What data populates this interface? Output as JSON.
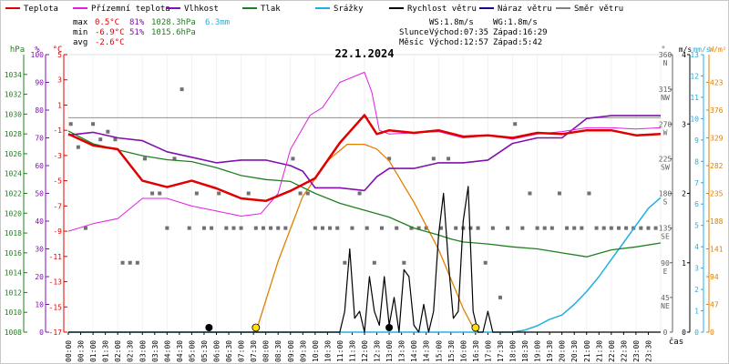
{
  "chart_data": {
    "type": "line",
    "title": "22.1.2024",
    "legend": [
      {
        "key": "temp",
        "label": "Teplota",
        "color": "#e00000"
      },
      {
        "key": "feels",
        "label": "Přízemní teplota",
        "color": "#e020e0"
      },
      {
        "key": "hum",
        "label": "Vlhkost",
        "color": "#8010b0"
      },
      {
        "key": "press",
        "label": "Tlak",
        "color": "#208020"
      },
      {
        "key": "rain",
        "label": "Srážky",
        "color": "#20b0e0"
      },
      {
        "key": "wind",
        "label": "Rychlost větru",
        "color": "#000000"
      },
      {
        "key": "gust",
        "label": "Náraz větru",
        "color": "#200090"
      },
      {
        "key": "dir",
        "label": "Směr větru",
        "color": "#808080"
      }
    ],
    "stats": {
      "max_label": "max",
      "max_temp": "0.5°C",
      "max_hum": "81%",
      "max_press": "1028.3hPa",
      "rain_total": "6.3mm",
      "min_label": "min",
      "min_temp": "-6.9°C",
      "min_hum": "51%",
      "min_press": "1015.6hPa",
      "avg_label": "avg",
      "avg_temp": "-2.6°C"
    },
    "wind_info": {
      "ws": "WS:1.8m/s",
      "wg": "WG:1.8m/s"
    },
    "sun": {
      "label": "Slunce",
      "rise": "Východ:07:35",
      "set": "Západ:16:29"
    },
    "moon": {
      "label": "Měsíc",
      "rise": "Východ:12:57",
      "set": "Západ:5:42"
    },
    "axes": {
      "hpa": {
        "unit": "hPa",
        "min": 1008,
        "max": 1036,
        "ticks": [
          "1034",
          "1032",
          "1030",
          "1028",
          "1026",
          "1024",
          "1022",
          "1020",
          "1018",
          "1016",
          "1014",
          "1012",
          "1010",
          "1008"
        ]
      },
      "pct": {
        "unit": "%",
        "min": 0,
        "max": 100,
        "ticks": [
          "100",
          "90",
          "80",
          "70",
          "60",
          "50",
          "40",
          "30",
          "20",
          "10",
          "0"
        ]
      },
      "temp": {
        "unit": "°C",
        "min": -17,
        "max": 5,
        "ticks": [
          "5",
          "3",
          "1",
          "-1",
          "-3",
          "-5",
          "-7",
          "-9",
          "-11",
          "-13",
          "-15",
          "-17"
        ]
      },
      "deg": {
        "unit": "°",
        "min": 0,
        "max": 360,
        "ticks": [
          [
            "360",
            "N"
          ],
          [
            "315",
            "NW"
          ],
          [
            "270",
            "W"
          ],
          [
            "225",
            "SW"
          ],
          [
            "180",
            "S"
          ],
          [
            "135",
            "SE"
          ],
          [
            "90",
            "E"
          ],
          [
            "45",
            "NE"
          ],
          [
            "0",
            ""
          ]
        ]
      },
      "ms": {
        "unit": "m/s",
        "min": 0,
        "max": 4,
        "ticks": [
          "4",
          "3",
          "2",
          "1",
          "0"
        ]
      },
      "mms": {
        "unit": "mm/s",
        "min": 0,
        "max": 13,
        "ticks": [
          "13",
          "12",
          "11",
          "10",
          "9",
          "8",
          "7",
          "6",
          "5",
          "4",
          "3",
          "2",
          "1",
          "0"
        ]
      },
      "wm2": {
        "unit": "W/m²",
        "min": 0,
        "max": 470,
        "ticks": [
          "423",
          "376",
          "329",
          "282",
          "235",
          "188",
          "141",
          "94",
          "47",
          "0"
        ]
      },
      "x_label": "čas",
      "x_ticks": [
        "00:00",
        "00:30",
        "01:00",
        "01:30",
        "02:00",
        "02:30",
        "03:00",
        "03:30",
        "04:00",
        "04:30",
        "05:00",
        "05:30",
        "06:00",
        "06:30",
        "07:00",
        "07:30",
        "08:00",
        "08:30",
        "09:00",
        "09:30",
        "10:00",
        "10:30",
        "11:00",
        "11:30",
        "12:00",
        "12:30",
        "13:00",
        "13:30",
        "14:00",
        "14:30",
        "15:00",
        "15:30",
        "16:00",
        "16:30",
        "17:00",
        "17:30",
        "18:00",
        "18:30",
        "19:00",
        "19:30",
        "20:00",
        "20:30",
        "21:00",
        "21:30",
        "22:00",
        "22:30",
        "23:00",
        "23:30"
      ]
    },
    "series": {
      "temp": {
        "x": [
          0,
          1,
          2,
          3,
          4,
          5,
          6,
          7,
          8,
          9,
          10,
          11,
          12,
          12.5,
          13,
          14,
          15,
          16,
          17,
          18,
          19,
          20,
          21,
          22,
          23,
          24
        ],
        "y": [
          -1.3,
          -2.2,
          -2.5,
          -5.0,
          -5.5,
          -5.0,
          -5.6,
          -6.4,
          -6.6,
          -5.8,
          -4.8,
          -2.0,
          0.2,
          -1.3,
          -1.0,
          -1.2,
          -1.0,
          -1.5,
          -1.4,
          -1.6,
          -1.2,
          -1.3,
          -1.0,
          -1.0,
          -1.4,
          -1.3
        ]
      },
      "feels": {
        "x": [
          0,
          1,
          2,
          3,
          4,
          5,
          6,
          7,
          7.8,
          8.5,
          9,
          9.8,
          10.3,
          11,
          12,
          12.3,
          12.6,
          13,
          14,
          15,
          16,
          17,
          18,
          19,
          20,
          21,
          22,
          23,
          24
        ],
        "y": [
          -9.0,
          -8.4,
          -8.0,
          -6.4,
          -6.4,
          -7.0,
          -7.4,
          -7.8,
          -7.6,
          -6.0,
          -2.5,
          0.2,
          0.8,
          2.8,
          3.6,
          2.0,
          -1.0,
          -1.3,
          -1.2,
          -1.1,
          -1.6,
          -1.4,
          -1.7,
          -1.3,
          -1.1,
          -0.8,
          -0.8,
          -0.9,
          -0.8
        ]
      },
      "hum": {
        "x": [
          0,
          1,
          2,
          3,
          4,
          5,
          6,
          7,
          8,
          9,
          9.5,
          10,
          11,
          12,
          12.5,
          13,
          14,
          15,
          16,
          17,
          18,
          19,
          20,
          21,
          22,
          23,
          24
        ],
        "y": [
          71,
          72,
          70,
          69,
          65,
          63,
          61,
          62,
          62,
          60,
          58,
          52,
          52,
          51,
          56,
          59,
          59,
          61,
          61,
          62,
          68,
          70,
          70,
          77,
          78,
          78,
          78
        ]
      },
      "press": {
        "x": [
          0,
          1,
          2,
          3,
          4,
          5,
          6,
          7,
          8,
          9,
          10,
          11,
          12,
          13,
          14,
          15,
          15.5,
          16,
          17,
          18,
          19,
          20,
          21,
          22,
          23,
          24
        ],
        "y": [
          1028.3,
          1027.0,
          1026.4,
          1025.8,
          1025.4,
          1025.2,
          1024.6,
          1023.8,
          1023.4,
          1023.2,
          1022.0,
          1021.0,
          1020.3,
          1019.6,
          1018.5,
          1017.8,
          1017.4,
          1017.1,
          1016.9,
          1016.6,
          1016.4,
          1016.0,
          1015.6,
          1016.3,
          1016.6,
          1017.0
        ]
      },
      "rain": {
        "x": [
          0,
          18,
          18.5,
          19,
          19.5,
          20,
          20.5,
          21,
          21.5,
          22,
          22.5,
          23,
          23.5,
          24
        ],
        "y": [
          0,
          0,
          0.1,
          0.3,
          0.6,
          0.8,
          1.3,
          1.9,
          2.6,
          3.4,
          4.2,
          5.0,
          5.8,
          6.3
        ]
      },
      "solar": {
        "x": [
          7.6,
          8.5,
          9.5,
          10.5,
          11.3,
          12,
          12.5,
          13,
          14,
          15,
          16,
          16.5
        ],
        "y": [
          0,
          120,
          230,
          290,
          318,
          318,
          310,
          290,
          220,
          140,
          40,
          0
        ]
      },
      "wind": {
        "x": [
          0,
          11.0,
          11.2,
          11.4,
          11.6,
          11.8,
          12.0,
          12.2,
          12.4,
          12.6,
          12.8,
          13.0,
          13.2,
          13.4,
          13.6,
          13.8,
          14.0,
          14.2,
          14.4,
          14.6,
          14.8,
          15.0,
          15.2,
          15.4,
          15.6,
          15.8,
          16.0,
          16.2,
          16.4,
          16.6,
          16.8,
          17.0,
          17.2,
          17.4,
          24
        ],
        "y": [
          0,
          0,
          0.3,
          1.2,
          0.2,
          0.3,
          0,
          0.8,
          0.3,
          0.1,
          0.8,
          0.1,
          0.5,
          0,
          0.9,
          0.8,
          0.1,
          0,
          0.4,
          0,
          0.3,
          1.4,
          2.0,
          1.0,
          0.2,
          0.3,
          1.6,
          2.1,
          0.3,
          0,
          0,
          0.3,
          0,
          0,
          0
        ]
      },
      "dir_points": [
        [
          0.1,
          270
        ],
        [
          0.4,
          240
        ],
        [
          0.7,
          135
        ],
        [
          1.0,
          270
        ],
        [
          1.3,
          250
        ],
        [
          1.6,
          260
        ],
        [
          1.9,
          250
        ],
        [
          2.2,
          90
        ],
        [
          2.5,
          90
        ],
        [
          2.8,
          90
        ],
        [
          3.1,
          225
        ],
        [
          3.4,
          180
        ],
        [
          3.7,
          180
        ],
        [
          4.0,
          135
        ],
        [
          4.3,
          225
        ],
        [
          4.6,
          315
        ],
        [
          4.9,
          135
        ],
        [
          5.2,
          180
        ],
        [
          5.5,
          135
        ],
        [
          5.8,
          135
        ],
        [
          6.1,
          180
        ],
        [
          6.4,
          135
        ],
        [
          6.7,
          135
        ],
        [
          7.0,
          135
        ],
        [
          7.3,
          180
        ],
        [
          7.6,
          135
        ],
        [
          7.9,
          135
        ],
        [
          8.2,
          135
        ],
        [
          8.5,
          135
        ],
        [
          8.8,
          135
        ],
        [
          9.1,
          225
        ],
        [
          9.4,
          180
        ],
        [
          9.7,
          180
        ],
        [
          10.0,
          135
        ],
        [
          10.3,
          135
        ],
        [
          10.6,
          135
        ],
        [
          10.9,
          135
        ],
        [
          11.2,
          90
        ],
        [
          11.5,
          135
        ],
        [
          11.8,
          180
        ],
        [
          12.1,
          135
        ],
        [
          12.4,
          90
        ],
        [
          12.7,
          135
        ],
        [
          13.0,
          225
        ],
        [
          13.3,
          135
        ],
        [
          13.6,
          90
        ],
        [
          13.9,
          135
        ],
        [
          14.2,
          135
        ],
        [
          14.5,
          135
        ],
        [
          14.8,
          225
        ],
        [
          15.1,
          135
        ],
        [
          15.4,
          225
        ],
        [
          15.7,
          135
        ],
        [
          16.0,
          135
        ],
        [
          16.3,
          135
        ],
        [
          16.6,
          135
        ],
        [
          16.9,
          90
        ],
        [
          17.2,
          135
        ],
        [
          17.5,
          45
        ],
        [
          17.8,
          135
        ],
        [
          18.1,
          270
        ],
        [
          18.4,
          135
        ],
        [
          18.7,
          180
        ],
        [
          19.0,
          135
        ],
        [
          19.3,
          135
        ],
        [
          19.6,
          135
        ],
        [
          19.9,
          180
        ],
        [
          20.2,
          135
        ],
        [
          20.5,
          135
        ],
        [
          20.8,
          135
        ],
        [
          21.1,
          180
        ],
        [
          21.4,
          135
        ],
        [
          21.7,
          135
        ],
        [
          22.0,
          135
        ],
        [
          22.3,
          135
        ],
        [
          22.6,
          135
        ],
        [
          22.9,
          135
        ],
        [
          23.2,
          135
        ],
        [
          23.5,
          135
        ],
        [
          23.8,
          135
        ]
      ],
      "sun_marks": [
        {
          "x": 7.6,
          "color": "#ffe000"
        },
        {
          "x": 16.5,
          "color": "#ffe000"
        }
      ],
      "moon_marks": [
        {
          "x": 5.7,
          "color": "#000000"
        },
        {
          "x": 13.0,
          "color": "#000000"
        }
      ],
      "moon_label": "●",
      "ref_lines": {
        "gray_temp": 0,
        "gray_dir": 270
      }
    }
  }
}
